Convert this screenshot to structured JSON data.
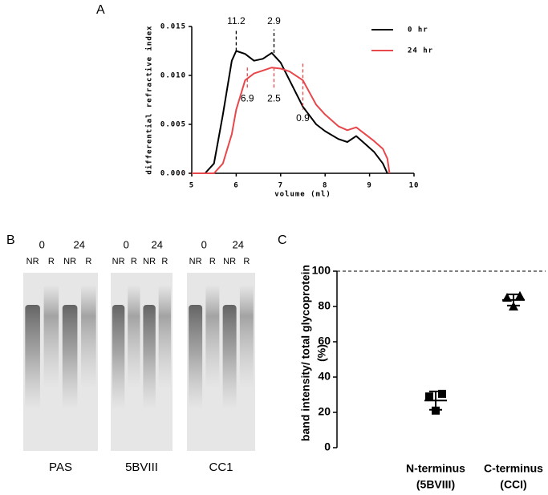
{
  "panel_labels": [
    "A",
    "B",
    "C"
  ],
  "chart_data": [
    {
      "type": "line",
      "xlabel": "volume (ml)",
      "ylabel": "differential refractive index",
      "x": [
        5.0,
        5.3,
        5.5,
        5.7,
        5.9,
        6.0,
        6.2,
        6.4,
        6.6,
        6.8,
        7.0,
        7.2,
        7.5,
        7.8,
        8.0,
        8.3,
        8.5,
        8.7,
        8.9,
        9.1,
        9.3,
        9.4,
        9.45
      ],
      "series": [
        {
          "name": "0 hr",
          "color": "#000000",
          "values": [
            0,
            0,
            0.001,
            0.006,
            0.0115,
            0.0125,
            0.0122,
            0.0115,
            0.0117,
            0.0123,
            0.0113,
            0.0095,
            0.0068,
            0.005,
            0.0043,
            0.0035,
            0.0032,
            0.0038,
            0.003,
            0.0022,
            0.001,
            0,
            null
          ]
        },
        {
          "name": "24 hr",
          "color": "#e8474b",
          "values": [
            0,
            0,
            0,
            0.001,
            0.004,
            0.0065,
            0.0095,
            0.0102,
            0.0105,
            0.0108,
            0.0107,
            0.0104,
            0.0095,
            0.007,
            0.006,
            0.0048,
            0.0044,
            0.0047,
            0.004,
            0.0033,
            0.0025,
            0.0015,
            0
          ]
        }
      ],
      "xlim": [
        5,
        10
      ],
      "xticks": [
        5,
        6,
        7,
        8,
        9,
        10
      ],
      "ylim": [
        0,
        0.015
      ],
      "yticks": [
        {
          "value": 0,
          "label": "0.000"
        },
        {
          "value": 0.005,
          "label": "0.005"
        },
        {
          "value": 0.01,
          "label": "0.010"
        },
        {
          "value": 0.015,
          "label": "0.015"
        }
      ],
      "legend": "upper right",
      "annotations": [
        {
          "text": "11.2",
          "x": 6.0,
          "y": [
            0.0125,
            0.0147
          ],
          "color": "#000000"
        },
        {
          "text": "2.9",
          "x": 6.85,
          "y": [
            0.0123,
            0.0147
          ],
          "color": "#000000"
        },
        {
          "text": "6.9",
          "x": 6.25,
          "y": [
            0.0108,
            0.0085
          ],
          "color": "#e8474b"
        },
        {
          "text": "2.5",
          "x": 6.85,
          "y": [
            0.0108,
            0.0085
          ],
          "color": "#e8474b"
        },
        {
          "text": "0.9",
          "x": 7.5,
          "y": [
            0.0112,
            0.0065
          ],
          "color": "#e8474b"
        }
      ]
    },
    {
      "type": "dotplot",
      "ylabel": [
        "band intensity/ total glycoprotein",
        "(%)"
      ],
      "categories": [
        [
          "N-terminus",
          "(5BVIII)"
        ],
        [
          "C-terminus",
          "(CCI)"
        ]
      ],
      "markers": [
        "square",
        "triangle"
      ],
      "points": [
        [
          30.5,
          29,
          21
        ],
        [
          86,
          85,
          80
        ]
      ],
      "means": [
        26.7,
        83.7
      ],
      "errors": [
        5.2,
        3.2
      ],
      "ylim": [
        0,
        100
      ],
      "yticks": [
        0,
        20,
        40,
        60,
        80,
        100
      ],
      "reference_line": 100
    }
  ],
  "gels": [
    {
      "label": "PAS",
      "time_labels": [
        "0",
        "24"
      ],
      "lane_labels": [
        "NR",
        "R",
        "NR",
        "R"
      ]
    },
    {
      "label": "5BVIII",
      "time_labels": [
        "0",
        "24"
      ],
      "lane_labels": [
        "NR",
        "R",
        "NR",
        "R"
      ]
    },
    {
      "label": "CC1",
      "time_labels": [
        "0",
        "24"
      ],
      "lane_labels": [
        "NR",
        "R",
        "NR",
        "R"
      ]
    }
  ]
}
